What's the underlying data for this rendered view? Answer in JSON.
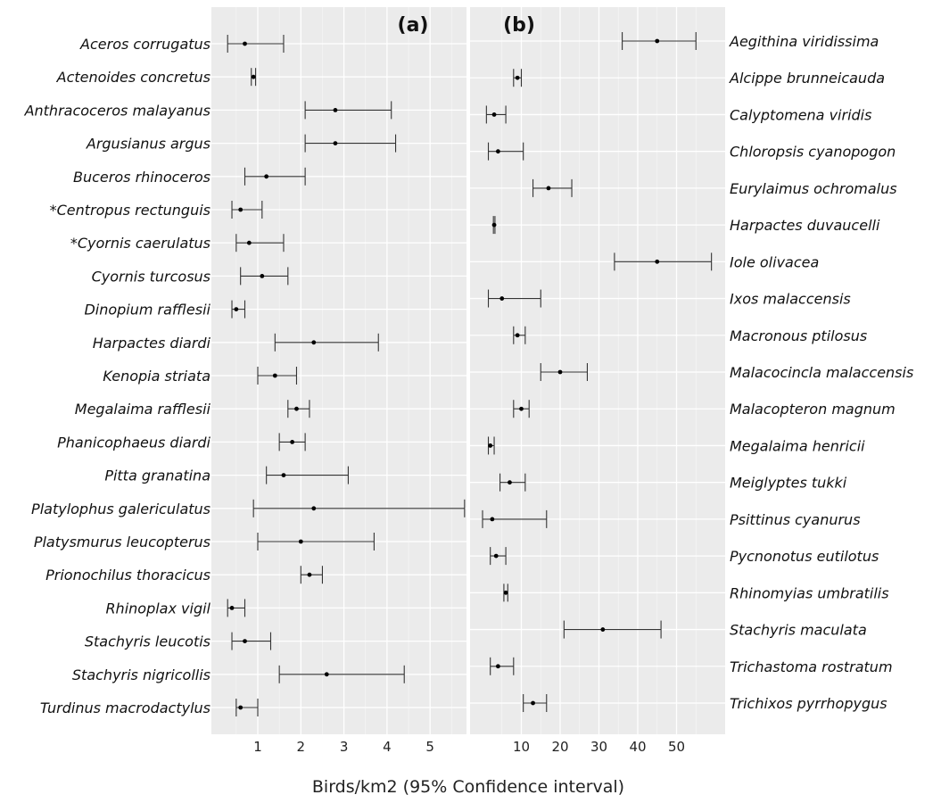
{
  "xlabel": "Birds/km2 (95% Confidence interval)",
  "chart_data": [
    {
      "type": "errorbar",
      "panel": "(a)",
      "x_ticks": [
        1,
        2,
        3,
        4,
        5
      ],
      "xlim": [
        0.1,
        6.1
      ],
      "grid": true,
      "species": [
        {
          "name": "Aceros corrugatus",
          "estimate": 0.7,
          "lower": 0.3,
          "upper": 1.6
        },
        {
          "name": "Actenoides concretus",
          "estimate": 0.9,
          "lower": 0.85,
          "upper": 0.95
        },
        {
          "name": "Anthracoceros malayanus",
          "estimate": 2.8,
          "lower": 2.1,
          "upper": 4.1
        },
        {
          "name": "Argusianus argus",
          "estimate": 2.8,
          "lower": 2.1,
          "upper": 4.2
        },
        {
          "name": "Buceros rhinoceros",
          "estimate": 1.2,
          "lower": 0.7,
          "upper": 2.1
        },
        {
          "name": "*Centropus rectunguis",
          "estimate": 0.6,
          "lower": 0.4,
          "upper": 1.1
        },
        {
          "name": "*Cyornis caerulatus",
          "estimate": 0.8,
          "lower": 0.5,
          "upper": 1.6
        },
        {
          "name": "Cyornis turcosus",
          "estimate": 1.1,
          "lower": 0.6,
          "upper": 1.7
        },
        {
          "name": "Dinopium rafflesii",
          "estimate": 0.5,
          "lower": 0.4,
          "upper": 0.7
        },
        {
          "name": "Harpactes diardi",
          "estimate": 2.3,
          "lower": 1.4,
          "upper": 3.8
        },
        {
          "name": "Kenopia striata",
          "estimate": 1.4,
          "lower": 1.0,
          "upper": 1.9
        },
        {
          "name": "Megalaima rafflesii",
          "estimate": 1.9,
          "lower": 1.7,
          "upper": 2.2
        },
        {
          "name": "Phanicophaeus diardi",
          "estimate": 1.8,
          "lower": 1.5,
          "upper": 2.1
        },
        {
          "name": "Pitta granatina",
          "estimate": 1.6,
          "lower": 1.2,
          "upper": 3.1
        },
        {
          "name": "Platylophus galericulatus",
          "estimate": 2.3,
          "lower": 0.9,
          "upper": 5.8
        },
        {
          "name": "Platysmurus leucopterus",
          "estimate": 2.0,
          "lower": 1.0,
          "upper": 3.7
        },
        {
          "name": "Prionochilus thoracicus",
          "estimate": 2.2,
          "lower": 2.0,
          "upper": 2.5
        },
        {
          "name": "Rhinoplax vigil",
          "estimate": 0.4,
          "lower": 0.3,
          "upper": 0.7
        },
        {
          "name": "Stachyris leucotis",
          "estimate": 0.7,
          "lower": 0.4,
          "upper": 1.3
        },
        {
          "name": "Stachyris nigricollis",
          "estimate": 2.6,
          "lower": 1.5,
          "upper": 4.4
        },
        {
          "name": "Turdinus macrodactylus",
          "estimate": 0.6,
          "lower": 0.5,
          "upper": 1.0
        }
      ]
    },
    {
      "type": "errorbar",
      "panel": "(b)",
      "x_ticks": [
        10,
        20,
        30,
        40,
        50
      ],
      "xlim": [
        0,
        62
      ],
      "grid": true,
      "species": [
        {
          "name": "Aegithina viridissima",
          "estimate": 45,
          "lower": 36,
          "upper": 55
        },
        {
          "name": "Alcippe brunneicauda",
          "estimate": 9,
          "lower": 8,
          "upper": 10
        },
        {
          "name": "Calyptomena viridis",
          "estimate": 3,
          "lower": 1,
          "upper": 6
        },
        {
          "name": "Chloropsis cyanopogon",
          "estimate": 4,
          "lower": 1.5,
          "upper": 10.5
        },
        {
          "name": "Eurylaimus ochromalus",
          "estimate": 17,
          "lower": 13,
          "upper": 23
        },
        {
          "name": "Harpactes duvaucelli",
          "estimate": 3,
          "lower": 2.8,
          "upper": 3.2
        },
        {
          "name": "Iole olivacea",
          "estimate": 45,
          "lower": 34,
          "upper": 59
        },
        {
          "name": "Ixos malaccensis",
          "estimate": 5,
          "lower": 1.5,
          "upper": 15
        },
        {
          "name": "Macronous ptilosus",
          "estimate": 9,
          "lower": 8,
          "upper": 11
        },
        {
          "name": "Malacocincla malaccensis",
          "estimate": 20,
          "lower": 15,
          "upper": 27
        },
        {
          "name": "Malacopteron magnum",
          "estimate": 10,
          "lower": 8,
          "upper": 12
        },
        {
          "name": "Megalaima henricii",
          "estimate": 2,
          "lower": 1.5,
          "upper": 3
        },
        {
          "name": "Meiglyptes tukki",
          "estimate": 7,
          "lower": 4.5,
          "upper": 11
        },
        {
          "name": "Psittinus cyanurus",
          "estimate": 2.5,
          "lower": 0,
          "upper": 16.5
        },
        {
          "name": "Pycnonotus eutilotus",
          "estimate": 3.5,
          "lower": 2,
          "upper": 6
        },
        {
          "name": "Rhinomyias umbratilis",
          "estimate": 6,
          "lower": 5.5,
          "upper": 6.5
        },
        {
          "name": "Stachyris maculata",
          "estimate": 31,
          "lower": 21,
          "upper": 46
        },
        {
          "name": "Trichastoma rostratum",
          "estimate": 4,
          "lower": 2,
          "upper": 8
        },
        {
          "name": "Trichixos pyrrhopygus",
          "estimate": 13,
          "lower": 10.5,
          "upper": 16.5
        }
      ]
    }
  ]
}
